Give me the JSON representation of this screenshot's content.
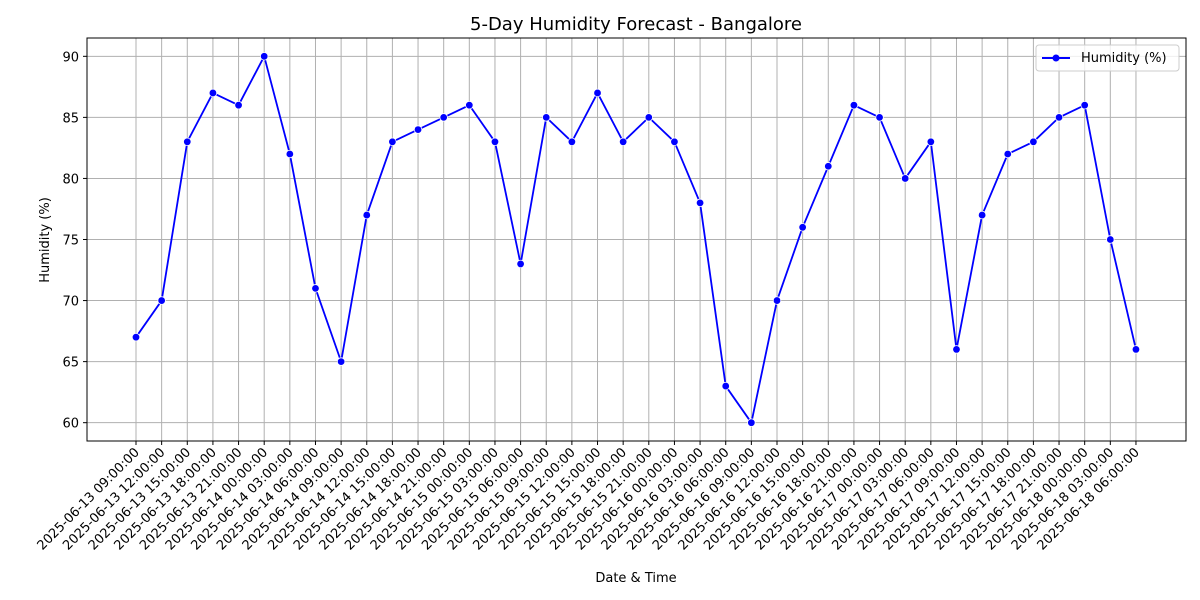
{
  "chart_data": {
    "type": "line",
    "title": "5-Day Humidity Forecast - Bangalore",
    "xlabel": "Date & Time",
    "ylabel": "Humidity (%)",
    "categories": [
      "2025-06-13 09:00:00",
      "2025-06-13 12:00:00",
      "2025-06-13 15:00:00",
      "2025-06-13 18:00:00",
      "2025-06-13 21:00:00",
      "2025-06-14 00:00:00",
      "2025-06-14 03:00:00",
      "2025-06-14 06:00:00",
      "2025-06-14 09:00:00",
      "2025-06-14 12:00:00",
      "2025-06-14 15:00:00",
      "2025-06-14 18:00:00",
      "2025-06-14 21:00:00",
      "2025-06-15 00:00:00",
      "2025-06-15 03:00:00",
      "2025-06-15 06:00:00",
      "2025-06-15 09:00:00",
      "2025-06-15 12:00:00",
      "2025-06-15 15:00:00",
      "2025-06-15 18:00:00",
      "2025-06-15 21:00:00",
      "2025-06-16 00:00:00",
      "2025-06-16 03:00:00",
      "2025-06-16 06:00:00",
      "2025-06-16 09:00:00",
      "2025-06-16 12:00:00",
      "2025-06-16 15:00:00",
      "2025-06-16 18:00:00",
      "2025-06-16 21:00:00",
      "2025-06-17 00:00:00",
      "2025-06-17 03:00:00",
      "2025-06-17 06:00:00",
      "2025-06-17 09:00:00",
      "2025-06-17 12:00:00",
      "2025-06-17 15:00:00",
      "2025-06-17 18:00:00",
      "2025-06-17 21:00:00",
      "2025-06-18 00:00:00",
      "2025-06-18 03:00:00",
      "2025-06-18 06:00:00"
    ],
    "series": [
      {
        "name": "Humidity (%)",
        "color": "#0000ff",
        "values": [
          67,
          70,
          83,
          87,
          86,
          90,
          82,
          71,
          65,
          77,
          83,
          84,
          85,
          86,
          83,
          73,
          85,
          83,
          87,
          83,
          85,
          83,
          78,
          63,
          60,
          70,
          76,
          81,
          86,
          85,
          80,
          83,
          66,
          77,
          82,
          83,
          85,
          86,
          75,
          66
        ]
      }
    ],
    "ylim": [
      58.5,
      91.5
    ],
    "yticks": [
      60,
      65,
      70,
      75,
      80,
      85,
      90
    ],
    "grid": true,
    "legend_position": "top-right"
  }
}
